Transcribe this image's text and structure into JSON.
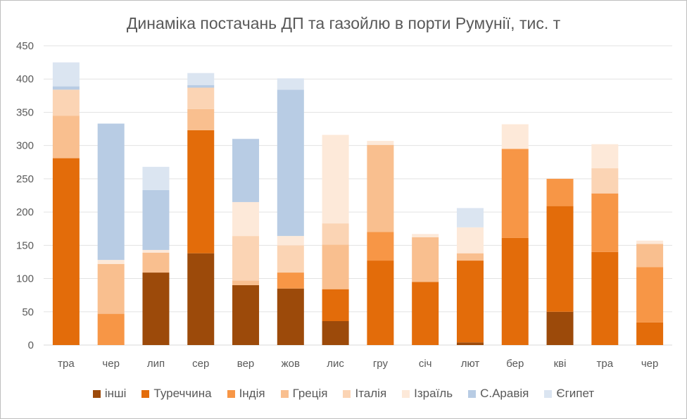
{
  "chart_data": {
    "type": "bar",
    "stacked": true,
    "title": "Динаміка постачань ДП та газойлю в порти Румунії, тис. т",
    "xlabel": "",
    "ylabel": "",
    "ylim": [
      0,
      450
    ],
    "yticks": [
      "0",
      "50",
      "100",
      "150",
      "200",
      "250",
      "300",
      "350",
      "400",
      "450"
    ],
    "grid": true,
    "legend_position": "bottom",
    "categories": [
      "тра",
      "чер",
      "лип",
      "сер",
      "вер",
      "жов",
      "лис",
      "гру",
      "січ",
      "лют",
      "бер",
      "кві",
      "тра",
      "чер"
    ],
    "series": [
      {
        "name": "інші",
        "color": "#9c4a0a",
        "values": [
          0,
          0,
          109,
          138,
          90,
          85,
          36,
          0,
          0,
          4,
          0,
          50,
          0,
          0
        ]
      },
      {
        "name": "Туреччина",
        "color": "#e36c0a",
        "values": [
          281,
          0,
          0,
          185,
          0,
          0,
          48,
          127,
          95,
          123,
          161,
          159,
          140,
          34
        ]
      },
      {
        "name": "Індія",
        "color": "#f79646",
        "values": [
          0,
          47,
          0,
          0,
          0,
          24,
          0,
          43,
          0,
          0,
          134,
          41,
          88,
          83
        ]
      },
      {
        "name": "Греція",
        "color": "#f9bf8f",
        "values": [
          64,
          75,
          30,
          32,
          7,
          0,
          67,
          131,
          67,
          11,
          0,
          0,
          0,
          35
        ]
      },
      {
        "name": "Італія",
        "color": "#fbd4b4",
        "values": [
          39,
          0,
          0,
          32,
          67,
          41,
          32,
          0,
          0,
          0,
          0,
          0,
          38,
          0
        ]
      },
      {
        "name": "Ізраїль",
        "color": "#fde9d9",
        "values": [
          0,
          6,
          4,
          0,
          51,
          14,
          133,
          6,
          5,
          39,
          37,
          0,
          36,
          5
        ]
      },
      {
        "name": "С.Аравія",
        "color": "#b8cce4",
        "values": [
          5,
          205,
          90,
          4,
          95,
          220,
          0,
          0,
          0,
          0,
          0,
          0,
          0,
          0
        ]
      },
      {
        "name": "Єгипет",
        "color": "#dbe5f1",
        "values": [
          36,
          0,
          35,
          18,
          0,
          17,
          0,
          0,
          0,
          29,
          0,
          0,
          0,
          0
        ]
      }
    ]
  }
}
